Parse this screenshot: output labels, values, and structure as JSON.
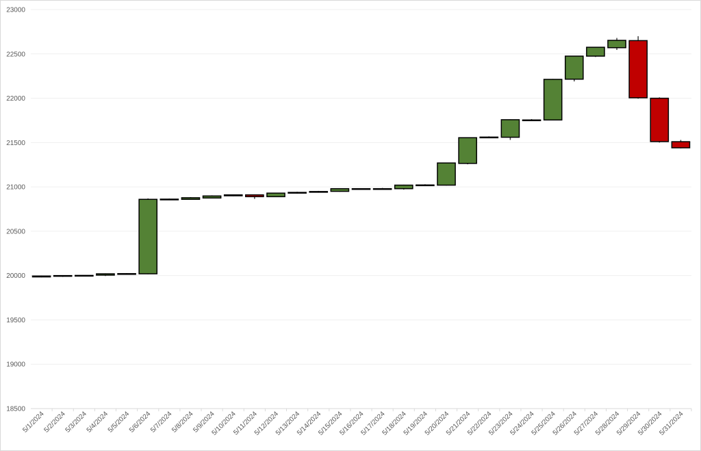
{
  "chart_data": {
    "type": "candlestick",
    "categories": [
      "5/1/2024",
      "5/2/2024",
      "5/3/2024",
      "5/4/2024",
      "5/5/2024",
      "5/6/2024",
      "5/7/2024",
      "5/8/2024",
      "5/9/2024",
      "5/10/2024",
      "5/11/2024",
      "5/12/2024",
      "5/13/2024",
      "5/14/2024",
      "5/15/2024",
      "5/16/2024",
      "5/17/2024",
      "5/18/2024",
      "5/19/2024",
      "5/20/2024",
      "5/21/2024",
      "5/22/2024",
      "5/23/2024",
      "5/24/2024",
      "5/25/2024",
      "5/26/2024",
      "5/27/2024",
      "5/28/2024",
      "5/29/2024",
      "5/30/2024",
      "5/31/2024"
    ],
    "open": [
      19985,
      19995,
      19998,
      20005,
      20015,
      20020,
      20855,
      20860,
      20875,
      20900,
      20910,
      20890,
      20930,
      20940,
      20950,
      20978,
      20975,
      20980,
      21015,
      21020,
      21265,
      21555,
      21560,
      21750,
      21755,
      22215,
      22475,
      22570,
      22650,
      22000,
      21510
    ],
    "high": [
      20000,
      20005,
      20005,
      20025,
      20028,
      20870,
      20868,
      20885,
      20905,
      20915,
      20915,
      20935,
      20945,
      20955,
      20985,
      20985,
      20988,
      21025,
      21030,
      21272,
      21560,
      21570,
      21762,
      21765,
      22218,
      22478,
      22578,
      22680,
      22700,
      22010,
      21530
    ],
    "low": [
      19980,
      19985,
      19990,
      19995,
      20010,
      20015,
      20850,
      20855,
      20870,
      20895,
      20865,
      20885,
      20925,
      20935,
      20945,
      20972,
      20970,
      20970,
      21010,
      21015,
      21255,
      21550,
      21530,
      21745,
      21750,
      22190,
      22465,
      22545,
      21995,
      21500,
      21435
    ],
    "close": [
      19995,
      20000,
      20002,
      20020,
      20022,
      20860,
      20862,
      20878,
      20898,
      20910,
      20890,
      20930,
      20938,
      20948,
      20980,
      20980,
      20980,
      21020,
      21022,
      21270,
      21555,
      21562,
      21758,
      21755,
      22213,
      22475,
      22575,
      22653,
      22005,
      21511,
      21441
    ],
    "up_color": "#548235",
    "down_color": "#c00000",
    "ylim": [
      18500,
      23000
    ],
    "yticks": [
      18500,
      19000,
      19500,
      20000,
      20500,
      21000,
      21500,
      22000,
      22500,
      23000
    ],
    "grid": true
  }
}
